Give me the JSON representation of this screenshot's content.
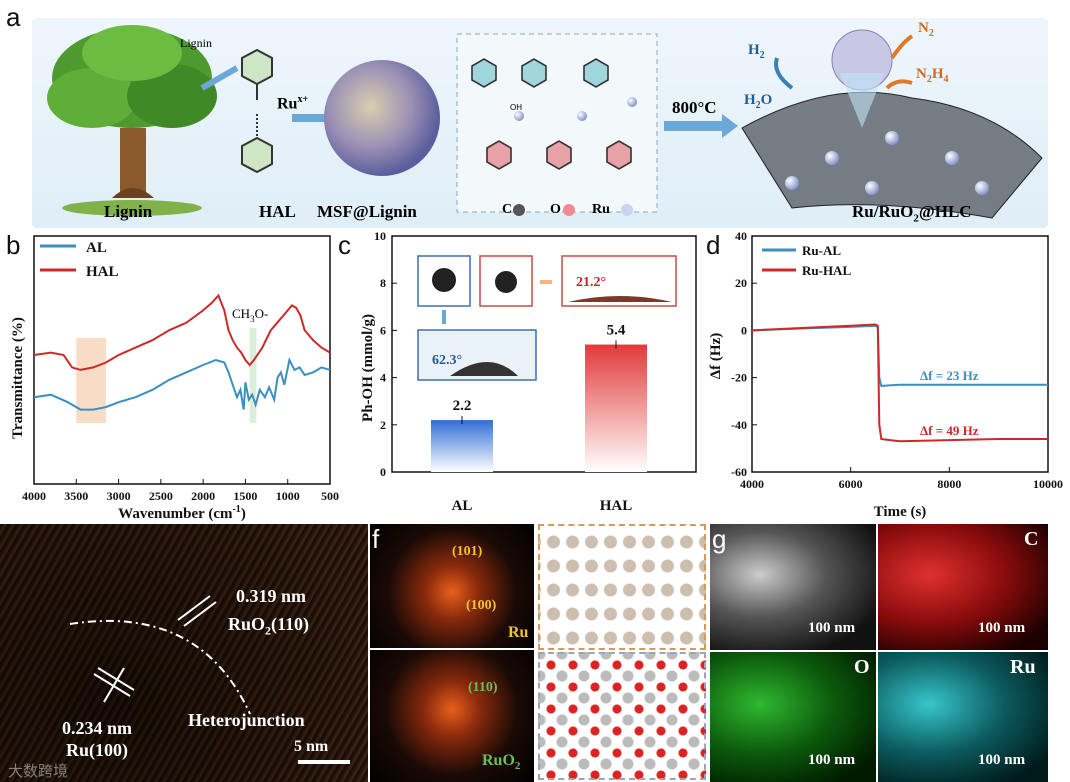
{
  "panels": {
    "a": "a",
    "b": "b",
    "c": "c",
    "d": "d",
    "e": "e",
    "f": "f",
    "g": "g"
  },
  "panel_a": {
    "lignin_label": "Lignin",
    "hal_label": "HAL",
    "msf_label": "MSF@Lignin",
    "product_label_main": "Ru/RuO",
    "product_label_sub": "2",
    "product_label_tail": "@HLC",
    "lignin_small": "Lignin",
    "ru_ion_main": "Ru",
    "ru_ion_sup": "x+",
    "temp_label": "800°C",
    "h2_main": "H",
    "h2_sub": "2",
    "h2o_main": "H",
    "h2o_sub": "2",
    "h2o_tail": "O",
    "n2_main": "N",
    "n2_sub": "2",
    "n2h4_main": "N",
    "n2h4_sub1": "2",
    "n2h4_mid": "H",
    "n2h4_sub2": "4",
    "legend": {
      "c": "C",
      "o": "O",
      "ru": "Ru"
    },
    "oh": "OH"
  },
  "chart_data": [
    {
      "id": "b",
      "type": "line",
      "xlabel_main": "Wavenumber (cm",
      "xlabel_sup": "-1",
      "xlabel_tail": ")",
      "ylabel": "Transmittance (%)",
      "xlim": [
        4000,
        500
      ],
      "xticks": [
        "4000",
        "3500",
        "3000",
        "2500",
        "2000",
        "1500",
        "1000",
        "500"
      ],
      "annotation_main": "CH",
      "annotation_sub": "3",
      "annotation_tail": "O-",
      "series": [
        {
          "name": "AL",
          "color": "#3b8fc1",
          "x": [
            4000,
            3800,
            3600,
            3450,
            3300,
            3150,
            3000,
            2800,
            2600,
            2400,
            2200,
            2000,
            1850,
            1750,
            1700,
            1650,
            1600,
            1560,
            1520,
            1500,
            1460,
            1420,
            1380,
            1330,
            1270,
            1220,
            1160,
            1120,
            1080,
            1040,
            980,
            920,
            860,
            800,
            700,
            600,
            500
          ],
          "y": [
            35,
            36,
            33,
            30,
            30,
            31,
            33,
            35,
            38,
            42,
            45,
            48,
            50,
            49,
            45,
            40,
            35,
            38,
            30,
            41,
            34,
            36,
            32,
            38,
            35,
            39,
            34,
            43,
            45,
            40,
            50,
            46,
            47,
            44,
            45,
            47,
            46
          ]
        },
        {
          "name": "HAL",
          "color": "#cc2a2a",
          "x": [
            4000,
            3800,
            3650,
            3550,
            3450,
            3300,
            3150,
            3000,
            2800,
            2600,
            2400,
            2200,
            2000,
            1900,
            1820,
            1750,
            1700,
            1650,
            1600,
            1550,
            1500,
            1450,
            1400,
            1300,
            1200,
            1100,
            1000,
            950,
            900,
            850,
            800,
            700,
            600,
            500
          ],
          "y": [
            52,
            53,
            52,
            47,
            46,
            47,
            49,
            52,
            55,
            58,
            62,
            65,
            70,
            73,
            76,
            70,
            62,
            58,
            55,
            53,
            50,
            48,
            50,
            55,
            62,
            66,
            70,
            72,
            71,
            68,
            62,
            58,
            55,
            53
          ]
        }
      ]
    },
    {
      "id": "c",
      "type": "bar",
      "ylabel": "Ph-OH (mmol/g)",
      "ylim": [
        0,
        10
      ],
      "yticks": [
        "0",
        "2",
        "4",
        "6",
        "8",
        "10"
      ],
      "categories": [
        "AL",
        "HAL"
      ],
      "values": [
        2.2,
        5.4
      ],
      "value_labels": [
        "2.2",
        "5.4"
      ],
      "angle_al": "62.3°",
      "angle_hal": "21.2°"
    },
    {
      "id": "d",
      "type": "line",
      "xlabel": "Time (s)",
      "ylabel": "Δf (Hz)",
      "xlim": [
        4000,
        10000
      ],
      "ylim": [
        -60,
        40
      ],
      "xticks": [
        "4000",
        "6000",
        "8000",
        "10000"
      ],
      "yticks": [
        "40",
        "20",
        "0",
        "-20",
        "-40",
        "-60"
      ],
      "annotation_al": "Δf = 23 Hz",
      "annotation_hal": "Δf = 49 Hz",
      "series": [
        {
          "name": "Ru-AL",
          "color": "#3b8fc1",
          "x": [
            4000,
            5000,
            6000,
            6500,
            6550,
            6580,
            6620,
            7000,
            8000,
            9000,
            10000
          ],
          "y": [
            0,
            0.8,
            1.5,
            2.0,
            1.5,
            -20,
            -23.5,
            -23,
            -23,
            -23,
            -23
          ]
        },
        {
          "name": "Ru-HAL",
          "color": "#cc2a2a",
          "x": [
            4000,
            5000,
            6000,
            6500,
            6550,
            6580,
            6620,
            7000,
            8000,
            9000,
            10000
          ],
          "y": [
            0,
            1.0,
            2.0,
            2.5,
            2.0,
            -40,
            -46,
            -47,
            -46.5,
            -46,
            -46
          ]
        }
      ]
    }
  ],
  "panel_e": {
    "d1": "0.319 nm",
    "plane1_main": "RuO",
    "plane1_sub": "2",
    "plane1_tail": "(110)",
    "d2": "0.234 nm",
    "plane2": "Ru(100)",
    "hetero": "Heterojunction",
    "scale": "5 nm"
  },
  "panel_f": {
    "top_spots": [
      "(101)",
      "(100)"
    ],
    "top_phase": "Ru",
    "bottom_spot": "(110)",
    "bottom_phase_main": "RuO",
    "bottom_phase_sub": "2"
  },
  "panel_g": {
    "maps": [
      "C",
      "O",
      "Ru"
    ],
    "scale": "100 nm"
  },
  "watermark": "大数跨境",
  "colors": {
    "blue": "#3b8fc1",
    "red": "#cc2a2a",
    "orange": "#e07a2a"
  }
}
